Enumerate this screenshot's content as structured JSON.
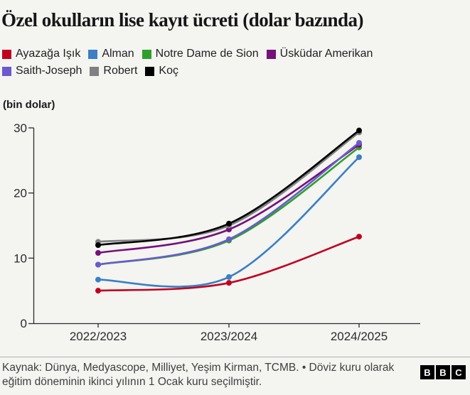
{
  "title": "Özel okulların lise kayıt ücreti (dolar bazında)",
  "legend": {
    "rows": [
      [
        0,
        1,
        2,
        3
      ],
      [
        4,
        5,
        6
      ]
    ]
  },
  "chart_data": {
    "type": "line",
    "title": "Özel okulların lise kayıt ücreti (dolar bazında)",
    "unit_label": "(bin dolar)",
    "categories": [
      "2022/2023",
      "2023/2024",
      "2024/2025"
    ],
    "series": [
      {
        "name": "Ayazağa Işık",
        "color": "#c0001f",
        "values": [
          5.0,
          6.2,
          13.3
        ]
      },
      {
        "name": "Alman",
        "color": "#3b7fc4",
        "values": [
          6.7,
          7.1,
          25.5
        ]
      },
      {
        "name": "Notre Dame de Sion",
        "color": "#2ca02c",
        "values": [
          9.0,
          12.7,
          27.0
        ]
      },
      {
        "name": "Üsküdar Amerikan",
        "color": "#76107a",
        "values": [
          10.8,
          14.4,
          27.4
        ]
      },
      {
        "name": "Saith-Joseph",
        "color": "#6a5acd",
        "values": [
          9.0,
          12.9,
          27.7
        ]
      },
      {
        "name": "Robert",
        "color": "#808080",
        "values": [
          12.5,
          15.0,
          29.3
        ]
      },
      {
        "name": "Koç",
        "color": "#000000",
        "values": [
          12.0,
          15.3,
          29.6
        ]
      }
    ],
    "ylim": [
      0,
      30
    ],
    "yticks": [
      0,
      10,
      20,
      30
    ],
    "grid": false,
    "legend_position": "top"
  },
  "footer": {
    "source": "Kaynak: Dünya, Medyascope, Milliyet, Yeşim Kirman, TCMB. • Döviz kuru olarak eğitim döneminin ikinci yılının 1 Ocak kuru seçilmiştir.",
    "logo_letters": [
      "B",
      "B",
      "C"
    ]
  },
  "colors": {
    "background": "#f4f4f1",
    "axis": "#2b2b2b",
    "title_text": "#161616",
    "footer_text": "#3f3f3f",
    "divider": "#b3b3b3"
  }
}
